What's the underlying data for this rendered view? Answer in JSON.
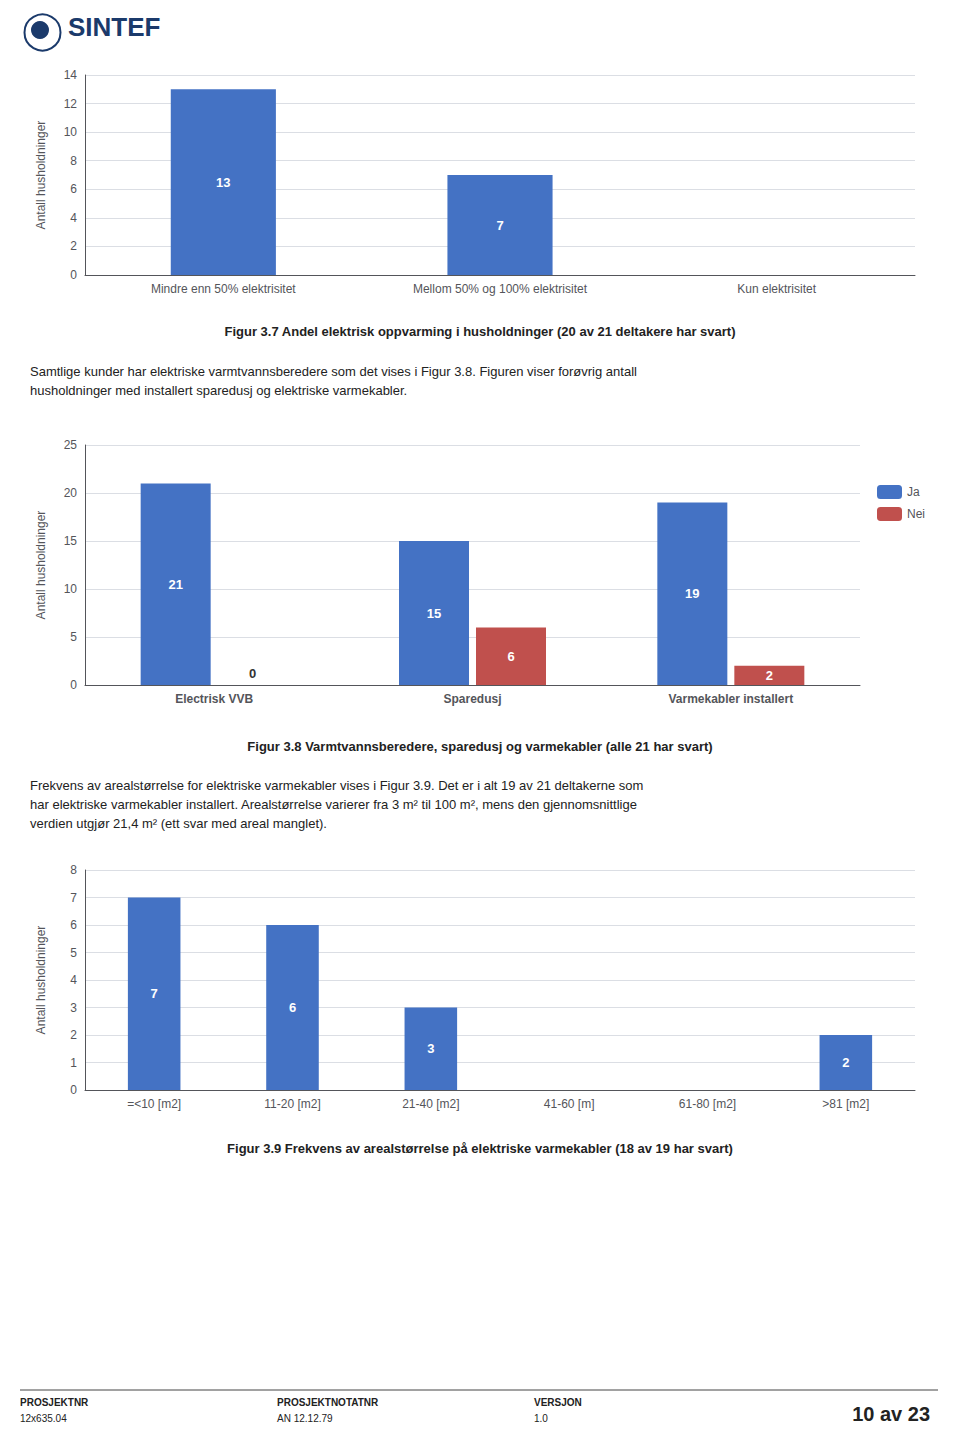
{
  "chart_data": [
    {
      "type": "bar",
      "title": "Figur 3.7 Andel elektrisk oppvarming i husholdninger (20 av 21 deltakere har svart)",
      "categories": [
        "Mindre enn 50% elektrisitet",
        "Mellom 50% og 100% elektrisitet",
        "Kun elektrisitet"
      ],
      "values": [
        13,
        7,
        0
      ],
      "value_labels": [
        "13",
        "7",
        null
      ],
      "color": "#4472C4",
      "ylabel": "Antall husholdninger",
      "ylim": [
        0,
        14
      ],
      "yticks": [
        0,
        2,
        4,
        6,
        8,
        10,
        12,
        14
      ],
      "grid": true,
      "data_labels": true,
      "annotations": [
        "SINTEF",
        "Samtlige kunder har elektriske varmtvannsberedere som det vises i Figur 3.8. Figuren viser forøvrig antall\nhusholdninger med installert sparedusj og elektriske varmekabler."
      ]
    },
    {
      "type": "bar",
      "title": "Figur 3.8 Varmtvannsberedere, sparedusj og varmekabler (alle 21 har svart)",
      "categories": [
        "Electrisk VVB",
        "Sparedusj",
        "Varmekabler installert"
      ],
      "series": [
        {
          "name": "Ja",
          "color": "#4472C4",
          "values": [
            21,
            15,
            19
          ]
        },
        {
          "name": "Nei",
          "color": "#C0504D",
          "values": [
            0,
            6,
            2
          ]
        }
      ],
      "ylabel": "Antall husholdninger",
      "ylim": [
        0,
        25
      ],
      "yticks": [
        0,
        5,
        10,
        15,
        20,
        25
      ],
      "grid": true,
      "legend": "right",
      "data_labels": true,
      "annotations": [
        "Frekvens av arealstørrelse for elektriske varmekabler vises i Figur 3.9. Det er i alt 19 av 21 deltakerne som\nhar elektriske varmekabler installert. Arealstørrelse varierer fra 3 m² til 100 m², mens den gjennomsnittlige\nverdien utgjør 21,4 m² (ett svar med areal manglet)."
      ]
    },
    {
      "type": "bar",
      "title": "Figur 3.9 Frekvens av arealstørrelse på elektriske varmekabler (18 av 19 har svart)",
      "categories": [
        "=<10 [m2]",
        "11-20 [m2]",
        "21-40 [m2]",
        "41-60 [m]",
        "61-80 [m2]",
        ">81 [m2]"
      ],
      "values": [
        7,
        6,
        3,
        0,
        0,
        2
      ],
      "value_labels": [
        "7",
        "6",
        "3",
        null,
        null,
        "2"
      ],
      "color": "#4472C4",
      "ylabel": "Antall husholdninger",
      "ylim": [
        0,
        8
      ],
      "yticks": [
        0,
        1,
        2,
        3,
        4,
        5,
        6,
        7,
        8
      ],
      "grid": true,
      "data_labels": true,
      "annotations": [
        "PROSJEKTNR",
        "12x635.04",
        "PROSJEKTNOTATNR",
        "AN 12.12.79",
        "VERSJON",
        "1.0",
        "10 av 23"
      ]
    }
  ]
}
